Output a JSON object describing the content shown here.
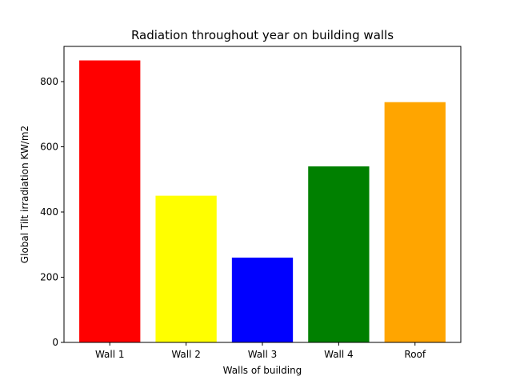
{
  "chart_data": {
    "type": "bar",
    "title": "Radiation throughout year on building walls",
    "xlabel": "Walls of building",
    "ylabel": "Global Tilt irradiation KW/m2",
    "categories": [
      "Wall 1",
      "Wall 2",
      "Wall 3",
      "Wall 4",
      "Roof"
    ],
    "values": [
      865,
      450,
      260,
      540,
      737
    ],
    "colors": [
      "#ff0000",
      "#ffff00",
      "#0000ff",
      "#008000",
      "#ffa500"
    ],
    "ylim": [
      0,
      908
    ],
    "yticks": [
      0,
      200,
      400,
      600,
      800
    ],
    "grid": false,
    "legend": "none"
  }
}
